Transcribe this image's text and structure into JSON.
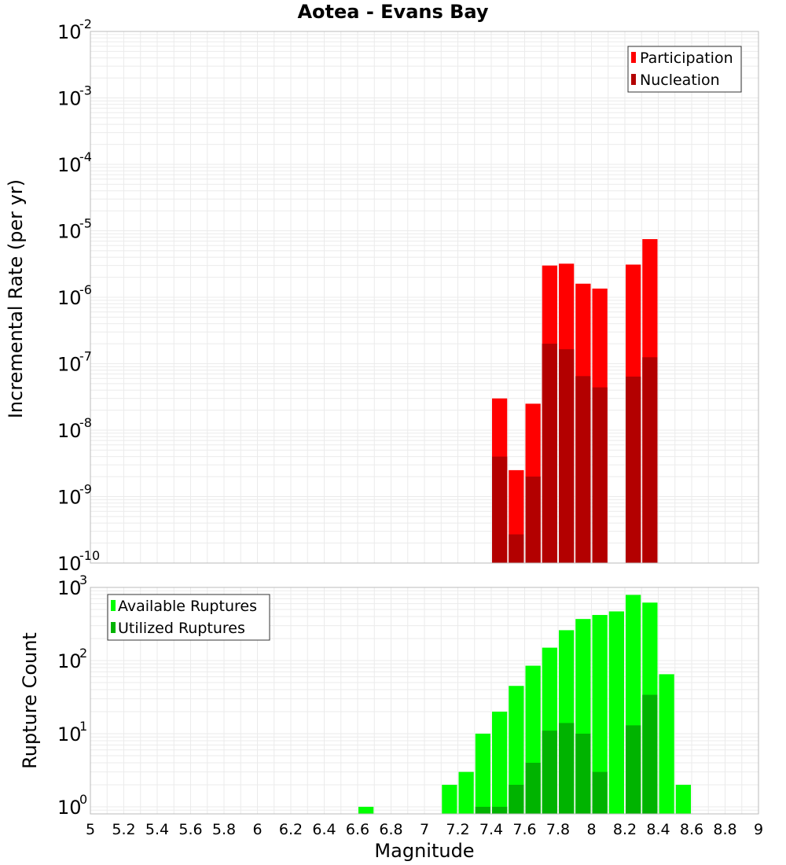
{
  "title": "Aotea - Evans Bay",
  "colors": {
    "participation": "#ff0000",
    "nucleation": "#b30000",
    "available": "#00ff00",
    "utilized": "#00b300",
    "grid": "#ebebeb",
    "frame": "#bbbbbb"
  },
  "chart_data": [
    {
      "type": "bar",
      "ylabel": "Incremental Rate (per yr)",
      "yscale": "log",
      "ylim": [
        1e-10,
        0.01
      ],
      "ytick_base": "10",
      "yticks": [
        {
          "value": 1e-10,
          "exp": "-10"
        },
        {
          "value": 1e-09,
          "exp": "-9"
        },
        {
          "value": 1e-08,
          "exp": "-8"
        },
        {
          "value": 1e-07,
          "exp": "-7"
        },
        {
          "value": 1e-06,
          "exp": "-6"
        },
        {
          "value": 1e-05,
          "exp": "-5"
        },
        {
          "value": 0.0001,
          "exp": "-4"
        },
        {
          "value": 0.001,
          "exp": "-3"
        },
        {
          "value": 0.01,
          "exp": "-2"
        }
      ],
      "xlim": [
        5,
        9
      ],
      "bin_width": 0.1,
      "legend_position": "top-right",
      "series": [
        {
          "name": "Participation",
          "x": [
            7.45,
            7.55,
            7.65,
            7.75,
            7.85,
            7.95,
            8.05,
            8.25,
            8.35
          ],
          "values": [
            3e-08,
            2.5e-09,
            2.5e-08,
            3e-06,
            3.2e-06,
            1.6e-06,
            1.35e-06,
            3.1e-06,
            7.5e-06
          ]
        },
        {
          "name": "Nucleation",
          "x": [
            7.45,
            7.55,
            7.65,
            7.75,
            7.85,
            7.95,
            8.05,
            8.25,
            8.35
          ],
          "values": [
            4e-09,
            2.7e-10,
            2e-09,
            2e-07,
            1.65e-07,
            6.5e-08,
            4.4e-08,
            6.4e-08,
            1.25e-07
          ]
        }
      ]
    },
    {
      "type": "bar",
      "xlabel": "Magnitude",
      "ylabel": "Rupture Count",
      "yscale": "log",
      "ylim": [
        0.8,
        1000
      ],
      "ytick_base": "10",
      "yticks": [
        {
          "value": 1,
          "exp": "0"
        },
        {
          "value": 10,
          "exp": "1"
        },
        {
          "value": 100,
          "exp": "2"
        },
        {
          "value": 1000,
          "exp": "3"
        }
      ],
      "xlim": [
        5,
        9
      ],
      "xticks": [
        "5",
        "5.2",
        "5.4",
        "5.6",
        "5.8",
        "6",
        "6.2",
        "6.4",
        "6.6",
        "6.8",
        "7",
        "7.2",
        "7.4",
        "7.6",
        "7.8",
        "8",
        "8.2",
        "8.4",
        "8.6",
        "8.8",
        "9"
      ],
      "bin_width": 0.1,
      "legend_position": "top-left",
      "series": [
        {
          "name": "Available Ruptures",
          "x": [
            6.65,
            7.15,
            7.25,
            7.35,
            7.45,
            7.55,
            7.65,
            7.75,
            7.85,
            7.95,
            8.05,
            8.15,
            8.25,
            8.35,
            8.45,
            8.55
          ],
          "values": [
            1,
            2,
            3,
            10,
            20,
            45,
            85,
            150,
            260,
            370,
            420,
            470,
            790,
            620,
            65,
            2
          ]
        },
        {
          "name": "Utilized Ruptures",
          "x": [
            7.35,
            7.45,
            7.55,
            7.65,
            7.75,
            7.85,
            7.95,
            8.05,
            8.25,
            8.35
          ],
          "values": [
            1,
            1,
            2,
            4,
            11,
            14,
            10,
            3,
            13,
            34
          ]
        }
      ]
    }
  ]
}
